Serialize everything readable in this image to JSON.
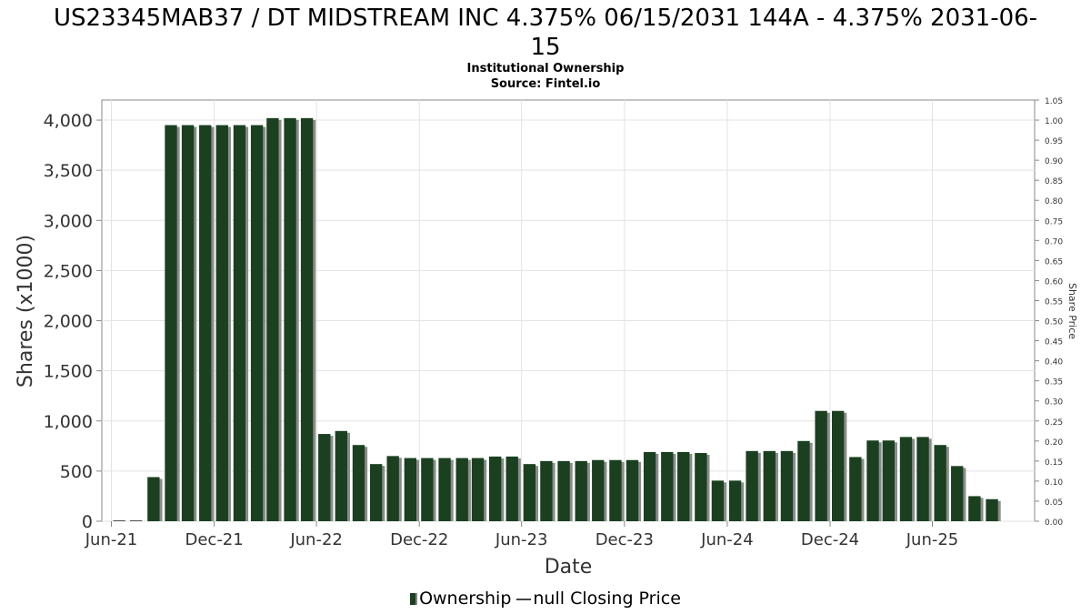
{
  "header": {
    "title_line1": "US23345MAB37 / DT MIDSTREAM INC 4.375% 06/15/2031 144A - 4.375% 2031-06-",
    "title_line2": "15",
    "subtitle": "Institutional Ownership",
    "source": "Source: Fintel.io"
  },
  "legend": {
    "ownership": "Ownership",
    "closing_price": "null Closing Price"
  },
  "colors": {
    "bar": "#1a4020",
    "bar_shadow": "#8c8c8c",
    "grid": "#e3e3e3",
    "axis": "#888888"
  },
  "chart_data": {
    "type": "bar",
    "xlabel": "Date",
    "ylabel": "Shares (x1000)",
    "y2label": "Share Price",
    "ylim": [
      0,
      4200
    ],
    "y2lim": [
      0,
      1.05
    ],
    "yticks": [
      0,
      500,
      1000,
      1500,
      2000,
      2500,
      3000,
      3500,
      4000
    ],
    "ytick_labels": [
      "0",
      "500",
      "1,000",
      "1,500",
      "2,000",
      "2,500",
      "3,000",
      "3,500",
      "4,000"
    ],
    "y2ticks": [
      0,
      0.05,
      0.1,
      0.15,
      0.2,
      0.25,
      0.3,
      0.35,
      0.4,
      0.45,
      0.5,
      0.55,
      0.6,
      0.65,
      0.7,
      0.75,
      0.8,
      0.85,
      0.9,
      0.95,
      1.0,
      1.05
    ],
    "y2tick_labels": [
      "0.00",
      "0.05",
      "0.10",
      "0.15",
      "0.20",
      "0.25",
      "0.30",
      "0.35",
      "0.40",
      "0.45",
      "0.50",
      "0.55",
      "0.60",
      "0.65",
      "0.70",
      "0.75",
      "0.80",
      "0.85",
      "0.90",
      "0.95",
      "1.00",
      "1.05"
    ],
    "xlim": [
      "2021-05-15",
      "2025-11-30"
    ],
    "xticks": [
      {
        "date": "2021-06-01",
        "label": "Jun-21"
      },
      {
        "date": "2021-12-01",
        "label": "Dec-21"
      },
      {
        "date": "2022-06-01",
        "label": "Jun-22"
      },
      {
        "date": "2022-12-01",
        "label": "Dec-22"
      },
      {
        "date": "2023-06-01",
        "label": "Jun-23"
      },
      {
        "date": "2023-12-01",
        "label": "Dec-23"
      },
      {
        "date": "2024-06-01",
        "label": "Jun-24"
      },
      {
        "date": "2024-12-01",
        "label": "Dec-24"
      },
      {
        "date": "2025-06-01",
        "label": "Jun-25"
      }
    ],
    "grid": true,
    "legend_position": "bottom",
    "series": [
      {
        "name": "Ownership",
        "type": "bar",
        "points": [
          {
            "date": "2021-06-15",
            "value": 0
          },
          {
            "date": "2021-07-15",
            "value": 0
          },
          {
            "date": "2021-08-15",
            "value": 440
          },
          {
            "date": "2021-09-15",
            "value": 3950
          },
          {
            "date": "2021-10-15",
            "value": 3950
          },
          {
            "date": "2021-11-15",
            "value": 3950
          },
          {
            "date": "2021-12-15",
            "value": 3950
          },
          {
            "date": "2022-01-15",
            "value": 3950
          },
          {
            "date": "2022-02-15",
            "value": 3950
          },
          {
            "date": "2022-03-15",
            "value": 4020
          },
          {
            "date": "2022-04-15",
            "value": 4020
          },
          {
            "date": "2022-05-15",
            "value": 4020
          },
          {
            "date": "2022-06-15",
            "value": 870
          },
          {
            "date": "2022-07-15",
            "value": 900
          },
          {
            "date": "2022-08-15",
            "value": 760
          },
          {
            "date": "2022-09-15",
            "value": 570
          },
          {
            "date": "2022-10-15",
            "value": 650
          },
          {
            "date": "2022-11-15",
            "value": 630
          },
          {
            "date": "2022-12-15",
            "value": 630
          },
          {
            "date": "2023-01-15",
            "value": 630
          },
          {
            "date": "2023-02-15",
            "value": 630
          },
          {
            "date": "2023-03-15",
            "value": 630
          },
          {
            "date": "2023-04-15",
            "value": 645
          },
          {
            "date": "2023-05-15",
            "value": 645
          },
          {
            "date": "2023-06-15",
            "value": 570
          },
          {
            "date": "2023-07-15",
            "value": 600
          },
          {
            "date": "2023-08-15",
            "value": 600
          },
          {
            "date": "2023-09-15",
            "value": 600
          },
          {
            "date": "2023-10-15",
            "value": 610
          },
          {
            "date": "2023-11-15",
            "value": 610
          },
          {
            "date": "2023-12-15",
            "value": 610
          },
          {
            "date": "2024-01-15",
            "value": 690
          },
          {
            "date": "2024-02-15",
            "value": 690
          },
          {
            "date": "2024-03-15",
            "value": 690
          },
          {
            "date": "2024-04-15",
            "value": 680
          },
          {
            "date": "2024-05-15",
            "value": 405
          },
          {
            "date": "2024-06-15",
            "value": 405
          },
          {
            "date": "2024-07-15",
            "value": 700
          },
          {
            "date": "2024-08-15",
            "value": 700
          },
          {
            "date": "2024-09-15",
            "value": 700
          },
          {
            "date": "2024-10-15",
            "value": 800
          },
          {
            "date": "2024-11-15",
            "value": 1100
          },
          {
            "date": "2024-12-15",
            "value": 1100
          },
          {
            "date": "2025-01-15",
            "value": 640
          },
          {
            "date": "2025-02-15",
            "value": 805
          },
          {
            "date": "2025-03-15",
            "value": 805
          },
          {
            "date": "2025-04-15",
            "value": 840
          },
          {
            "date": "2025-05-15",
            "value": 840
          },
          {
            "date": "2025-06-15",
            "value": 760
          },
          {
            "date": "2025-07-15",
            "value": 550
          },
          {
            "date": "2025-08-15",
            "value": 250
          },
          {
            "date": "2025-09-15",
            "value": 220
          }
        ]
      },
      {
        "name": "null Closing Price",
        "type": "line",
        "points": []
      }
    ]
  }
}
